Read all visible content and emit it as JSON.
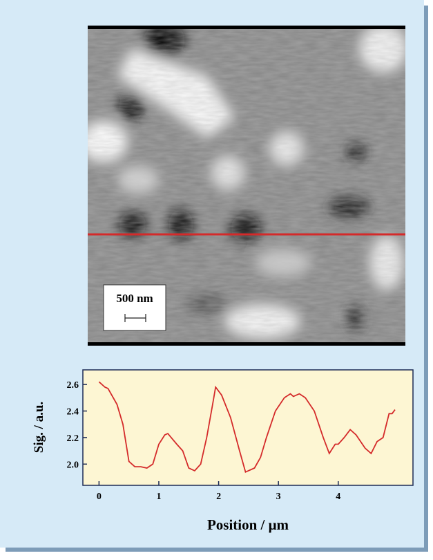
{
  "image": {
    "scale_label": "500 nm"
  },
  "chart_data": {
    "type": "line",
    "x_label": "Position / μm",
    "y_label": "Sig. / a.u.",
    "x": [
      0,
      0.1,
      0.15,
      0.3,
      0.4,
      0.5,
      0.6,
      0.7,
      0.8,
      0.9,
      1.0,
      1.1,
      1.15,
      1.3,
      1.4,
      1.5,
      1.6,
      1.7,
      1.8,
      1.9,
      1.95,
      2.05,
      2.2,
      2.35,
      2.45,
      2.6,
      2.7,
      2.8,
      2.95,
      3.1,
      3.2,
      3.25,
      3.35,
      3.45,
      3.6,
      3.75,
      3.85,
      3.95,
      4.0,
      4.1,
      4.2,
      4.3,
      4.45,
      4.55,
      4.65,
      4.75,
      4.85,
      4.9,
      4.95
    ],
    "series": [
      {
        "color": "#d42a2a",
        "values": [
          2.62,
          2.58,
          2.57,
          2.45,
          2.3,
          2.02,
          1.98,
          1.98,
          1.97,
          2.0,
          2.15,
          2.22,
          2.23,
          2.15,
          2.1,
          1.97,
          1.95,
          2.0,
          2.2,
          2.45,
          2.58,
          2.52,
          2.35,
          2.1,
          1.94,
          1.97,
          2.05,
          2.2,
          2.4,
          2.5,
          2.53,
          2.51,
          2.53,
          2.5,
          2.4,
          2.2,
          2.08,
          2.15,
          2.15,
          2.2,
          2.26,
          2.22,
          2.12,
          2.08,
          2.17,
          2.2,
          2.38,
          2.38,
          2.41
        ]
      }
    ],
    "xlim": [
      -0.27,
      5.25
    ],
    "ylim": [
      1.84,
      2.71
    ],
    "xticks": [
      0,
      1,
      2,
      3,
      4
    ],
    "yticks": [
      {
        "value": 2.0,
        "label": "2.0"
      },
      2.2,
      2.4,
      2.6
    ]
  }
}
